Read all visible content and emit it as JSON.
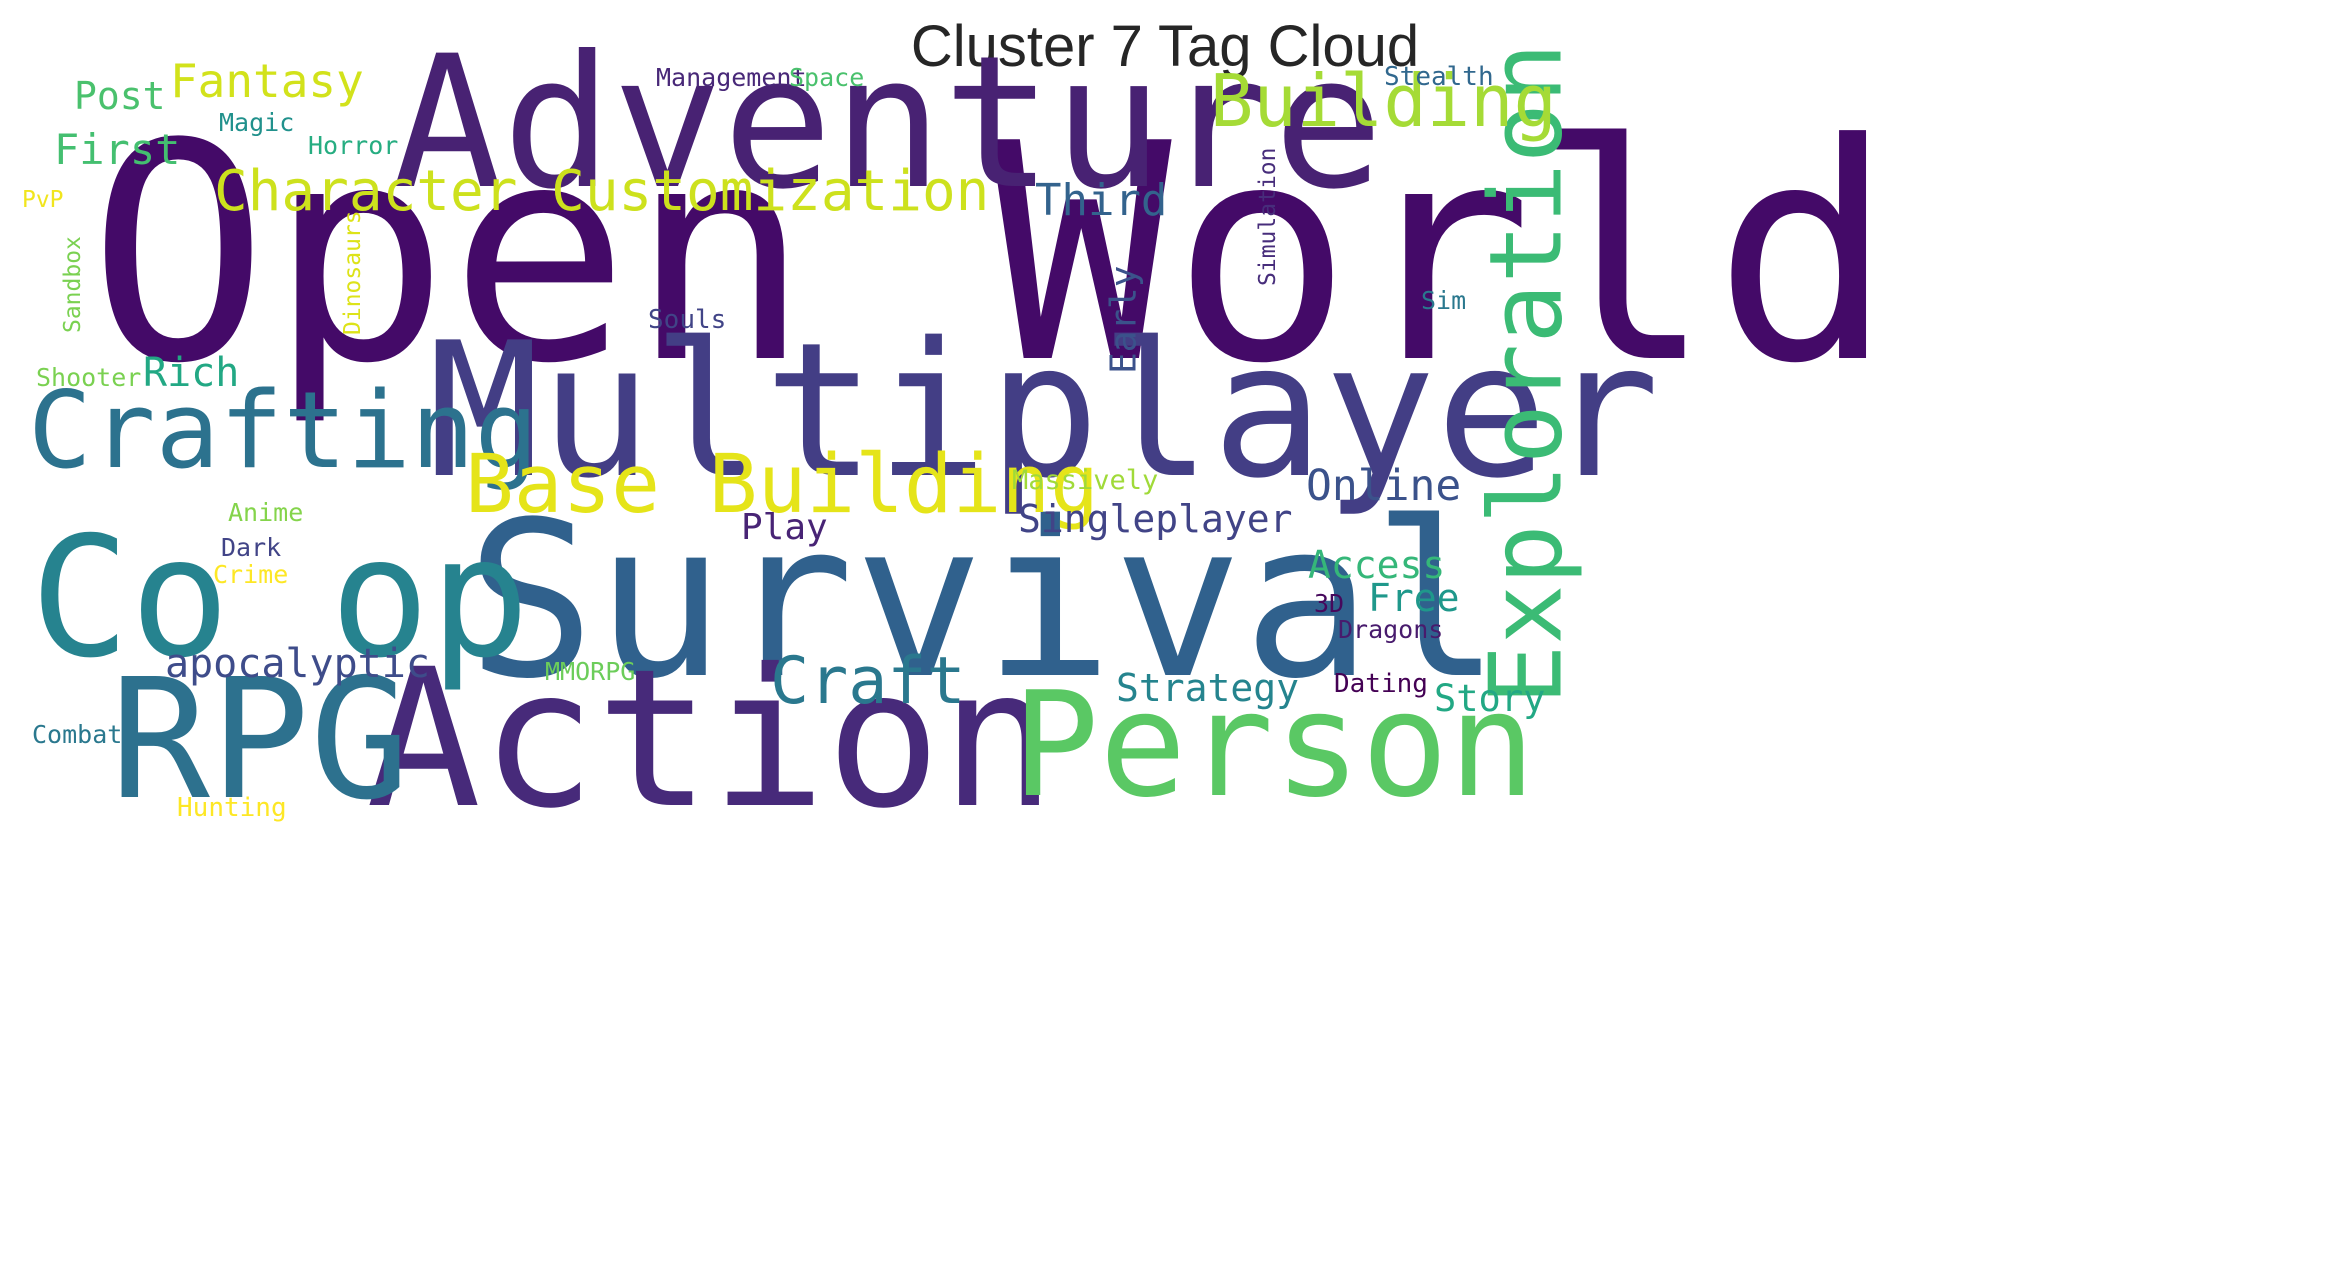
{
  "chart_data": {
    "type": "wordcloud",
    "title": "Cluster 7 Tag Cloud",
    "words": [
      {
        "text": "Open World",
        "rank": 1,
        "color": "#440a68",
        "orientation": "horizontal"
      },
      {
        "text": "Adventure",
        "rank": 2,
        "color": "#482273",
        "orientation": "horizontal"
      },
      {
        "text": "Multiplayer",
        "rank": 3,
        "color": "#433e85",
        "orientation": "horizontal"
      },
      {
        "text": "Survival",
        "rank": 4,
        "color": "#30618d",
        "orientation": "horizontal"
      },
      {
        "text": "Action",
        "rank": 5,
        "color": "#472a7a",
        "orientation": "horizontal"
      },
      {
        "text": "Co op",
        "rank": 6,
        "color": "#26838f",
        "orientation": "horizontal"
      },
      {
        "text": "RPG",
        "rank": 7,
        "color": "#2d718e",
        "orientation": "horizontal"
      },
      {
        "text": "Person",
        "rank": 8,
        "color": "#5ac864",
        "orientation": "horizontal"
      },
      {
        "text": "Exploration",
        "rank": 9,
        "color": "#3bbb75",
        "orientation": "vertical"
      },
      {
        "text": "Crafting",
        "rank": 10,
        "color": "#2c728e",
        "orientation": "horizontal"
      },
      {
        "text": "Base Building",
        "rank": 11,
        "color": "#e5e419",
        "orientation": "horizontal"
      },
      {
        "text": "Building",
        "rank": 12,
        "color": "#a5db36",
        "orientation": "horizontal"
      },
      {
        "text": "Character Customization",
        "rank": 13,
        "color": "#cde11d",
        "orientation": "horizontal"
      },
      {
        "text": "Craft",
        "rank": 14,
        "color": "#2a788e",
        "orientation": "horizontal"
      },
      {
        "text": "Online",
        "rank": 15,
        "color": "#3b528b",
        "orientation": "horizontal"
      },
      {
        "text": "Third",
        "rank": 16,
        "color": "#33638d",
        "orientation": "horizontal"
      },
      {
        "text": "Singleplayer",
        "rank": 17,
        "color": "#414487",
        "orientation": "horizontal"
      },
      {
        "text": "Fantasy",
        "rank": 18,
        "color": "#d2e21b",
        "orientation": "horizontal"
      },
      {
        "text": "apocalyptic",
        "rank": 19,
        "color": "#3e4c8a",
        "orientation": "horizontal"
      },
      {
        "text": "Strategy",
        "rank": 20,
        "color": "#25848e",
        "orientation": "horizontal"
      },
      {
        "text": "Access",
        "rank": 21,
        "color": "#35b779",
        "orientation": "horizontal"
      },
      {
        "text": "Free",
        "rank": 22,
        "color": "#1f988b",
        "orientation": "horizontal"
      },
      {
        "text": "Story",
        "rank": 23,
        "color": "#22a884",
        "orientation": "horizontal"
      },
      {
        "text": "Post",
        "rank": 24,
        "color": "#4ac16d",
        "orientation": "horizontal"
      },
      {
        "text": "First",
        "rank": 25,
        "color": "#44bf70",
        "orientation": "horizontal"
      },
      {
        "text": "Rich",
        "rank": 26,
        "color": "#22a884",
        "orientation": "horizontal"
      },
      {
        "text": "Play",
        "rank": 27,
        "color": "#482475",
        "orientation": "horizontal"
      },
      {
        "text": "Early",
        "rank": 28,
        "color": "#3b528b",
        "orientation": "vertical"
      },
      {
        "text": "Souls",
        "rank": 29,
        "color": "#414487",
        "orientation": "horizontal"
      },
      {
        "text": "Dating",
        "rank": 30,
        "color": "#440154",
        "orientation": "horizontal"
      },
      {
        "text": "Dragons",
        "rank": 31,
        "color": "#481b6d",
        "orientation": "horizontal"
      },
      {
        "text": "3D",
        "rank": 32,
        "color": "#46085c",
        "orientation": "horizontal"
      },
      {
        "text": "Massively",
        "rank": 33,
        "color": "#a0da39",
        "orientation": "horizontal"
      },
      {
        "text": "MMORPG",
        "rank": 34,
        "color": "#6ccd5a",
        "orientation": "horizontal"
      },
      {
        "text": "Simulation",
        "rank": 35,
        "color": "#472d7b",
        "orientation": "vertical"
      },
      {
        "text": "Sim",
        "rank": 36,
        "color": "#2a788e",
        "orientation": "horizontal"
      },
      {
        "text": "Stealth",
        "rank": 37,
        "color": "#31688e",
        "orientation": "horizontal"
      },
      {
        "text": "Management",
        "rank": 38,
        "color": "#482878",
        "orientation": "horizontal"
      },
      {
        "text": "Space",
        "rank": 39,
        "color": "#4ac16d",
        "orientation": "horizontal"
      },
      {
        "text": "Magic",
        "rank": 40,
        "color": "#21918c",
        "orientation": "horizontal"
      },
      {
        "text": "Horror",
        "rank": 41,
        "color": "#26ad81",
        "orientation": "horizontal"
      },
      {
        "text": "PvP",
        "rank": 42,
        "color": "#f1e51d",
        "orientation": "horizontal"
      },
      {
        "text": "Sandbox",
        "rank": 43,
        "color": "#7ad151",
        "orientation": "vertical"
      },
      {
        "text": "Dinosaurs",
        "rank": 44,
        "color": "#dde318",
        "orientation": "vertical"
      },
      {
        "text": "Shooter",
        "rank": 45,
        "color": "#7ad151",
        "orientation": "horizontal"
      },
      {
        "text": "Anime",
        "rank": 46,
        "color": "#84d44b",
        "orientation": "horizontal"
      },
      {
        "text": "Dark",
        "rank": 47,
        "color": "#414487",
        "orientation": "horizontal"
      },
      {
        "text": "Crime",
        "rank": 48,
        "color": "#fde725",
        "orientation": "horizontal"
      },
      {
        "text": "Combat",
        "rank": 49,
        "color": "#2a788e",
        "orientation": "horizontal"
      },
      {
        "text": "Hunting",
        "rank": 50,
        "color": "#fde725",
        "orientation": "horizontal"
      }
    ]
  }
}
